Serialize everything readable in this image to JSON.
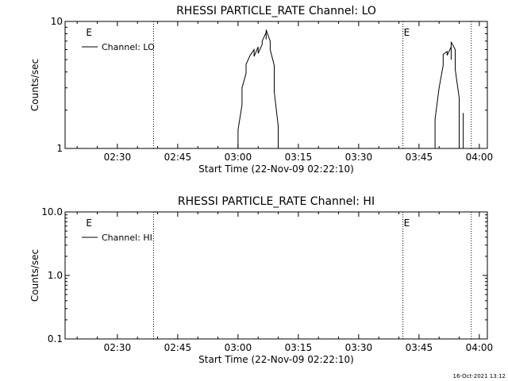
{
  "footer": {
    "timestamp": "16-Oct-2021 13:12"
  },
  "chart_data": [
    {
      "type": "line",
      "title": "RHESSI PARTICLE_RATE Channel: LO",
      "xlabel": "Start Time (22-Nov-09 02:22:10)",
      "ylabel": "Counts/sec",
      "yscale": "log",
      "ylim": [
        1,
        10
      ],
      "ytick_labels": [
        "1",
        "10"
      ],
      "xlim_minutes": [
        137,
        242
      ],
      "xtick_labels": [
        "02:30",
        "02:45",
        "03:00",
        "03:15",
        "03:30",
        "03:45",
        "04:00"
      ],
      "legend": {
        "position": "top-left",
        "label": "Channel: LO",
        "color": "#000000"
      },
      "event_flags": {
        "label": "E",
        "times": [
          "02:22",
          "03:41"
        ]
      },
      "vertical_markers": [
        "02:39",
        "03:41",
        "03:58"
      ],
      "series": [
        {
          "name": "Channel: LO",
          "segments": [
            [
              [
                "03:00",
                1.0
              ],
              [
                "03:00",
                1.4
              ],
              [
                "03:01",
                2.2
              ],
              [
                "03:01",
                3.0
              ],
              [
                "03:02",
                3.9
              ],
              [
                "03:02",
                4.6
              ],
              [
                "03:03",
                5.4
              ],
              [
                "03:04",
                6.0
              ],
              [
                "03:04",
                5.3
              ],
              [
                "03:05",
                6.3
              ],
              [
                "03:05",
                5.6
              ],
              [
                "03:06",
                6.6
              ],
              [
                "03:06",
                7.0
              ],
              [
                "03:07",
                8.2
              ],
              [
                "03:07",
                7.2
              ],
              [
                "03:07",
                8.6
              ],
              [
                "03:08",
                7.0
              ],
              [
                "03:08",
                6.0
              ],
              [
                "03:09",
                4.5
              ],
              [
                "03:09",
                2.8
              ],
              [
                "03:10",
                1.5
              ],
              [
                "03:10",
                1.0
              ]
            ],
            [
              [
                "03:49",
                1.0
              ],
              [
                "03:49",
                1.7
              ],
              [
                "03:50",
                3.0
              ],
              [
                "03:51",
                4.5
              ],
              [
                "03:51",
                5.5
              ],
              [
                "03:52",
                5.8
              ],
              [
                "03:52",
                5.4
              ],
              [
                "03:53",
                6.3
              ],
              [
                "03:53",
                5.0
              ],
              [
                "03:53",
                6.9
              ],
              [
                "03:54",
                6.0
              ],
              [
                "03:54",
                4.2
              ],
              [
                "03:55",
                2.5
              ],
              [
                "03:55",
                1.3
              ],
              [
                "03:55",
                1.0
              ]
            ],
            [
              [
                "03:56",
                1.0
              ],
              [
                "03:56",
                1.9
              ],
              [
                "03:56",
                1.0
              ]
            ]
          ]
        }
      ]
    },
    {
      "type": "line",
      "title": "RHESSI PARTICLE_RATE Channel: HI",
      "xlabel": "Start Time (22-Nov-09 02:22:10)",
      "ylabel": "Counts/sec",
      "yscale": "log",
      "ylim": [
        0.1,
        10
      ],
      "ytick_labels": [
        "0.1",
        "1.0",
        "10.0"
      ],
      "xlim_minutes": [
        137,
        242
      ],
      "xtick_labels": [
        "02:30",
        "02:45",
        "03:00",
        "03:15",
        "03:30",
        "03:45",
        "04:00"
      ],
      "legend": {
        "position": "top-left",
        "label": "Channel: HI",
        "color": "#000000"
      },
      "event_flags": {
        "label": "E",
        "times": [
          "02:22",
          "03:41"
        ]
      },
      "vertical_markers": [
        "02:39",
        "03:41",
        "03:58"
      ],
      "series": [
        {
          "name": "Channel: HI",
          "segments": []
        }
      ]
    }
  ]
}
